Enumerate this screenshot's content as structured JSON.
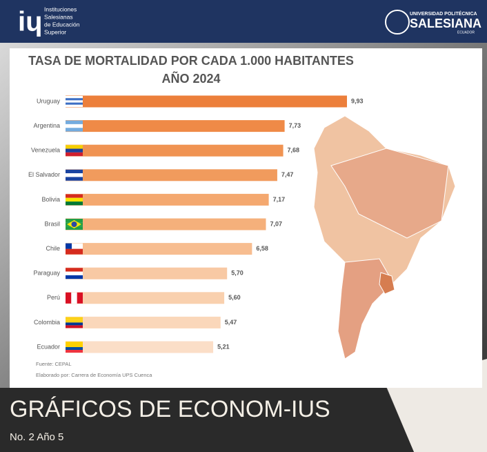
{
  "header": {
    "left_logo": [
      "Instituciones",
      "Salesianas",
      "de Educación",
      "Superior"
    ],
    "right_logo_top": "UNIVERSIDAD POLITÉCNICA",
    "right_logo_main": "SALESIANA",
    "right_logo_sub": "ECUADOR"
  },
  "chart_data": {
    "type": "bar",
    "orientation": "horizontal",
    "title": [
      "TASA DE MORTALIDAD POR CADA 1.000 HABITANTES",
      "AÑO 2024"
    ],
    "categories": [
      "Uruguay",
      "Argentina",
      "Venezuela",
      "El Salvador",
      "Bolivia",
      "Brasil",
      "Chile",
      "Paraguay",
      "Perú",
      "Colombia",
      "Ecuador"
    ],
    "values": [
      9.93,
      7.73,
      7.68,
      7.47,
      7.17,
      7.07,
      6.58,
      5.7,
      5.6,
      5.47,
      5.21
    ],
    "value_labels": [
      "9,93",
      "7,73",
      "7,68",
      "7,47",
      "7,17",
      "7,07",
      "6,58",
      "5,70",
      "5,60",
      "5,47",
      "5,21"
    ],
    "colors": [
      "#ec7f3b",
      "#ef8a47",
      "#f09352",
      "#f19b5d",
      "#f4a86f",
      "#f5b07b",
      "#f7bd90",
      "#f8c9a4",
      "#f9d0ae",
      "#fad7ba",
      "#fbdec7"
    ]
  },
  "notes": {
    "source": "Fuente: CEPAL",
    "author": "Elaborado por: Carrera de Economía UPS Cuenca"
  },
  "footer": {
    "title": "GRÁFICOS DE ECONOM-IUS",
    "issue": "No. 2 Año 5"
  }
}
